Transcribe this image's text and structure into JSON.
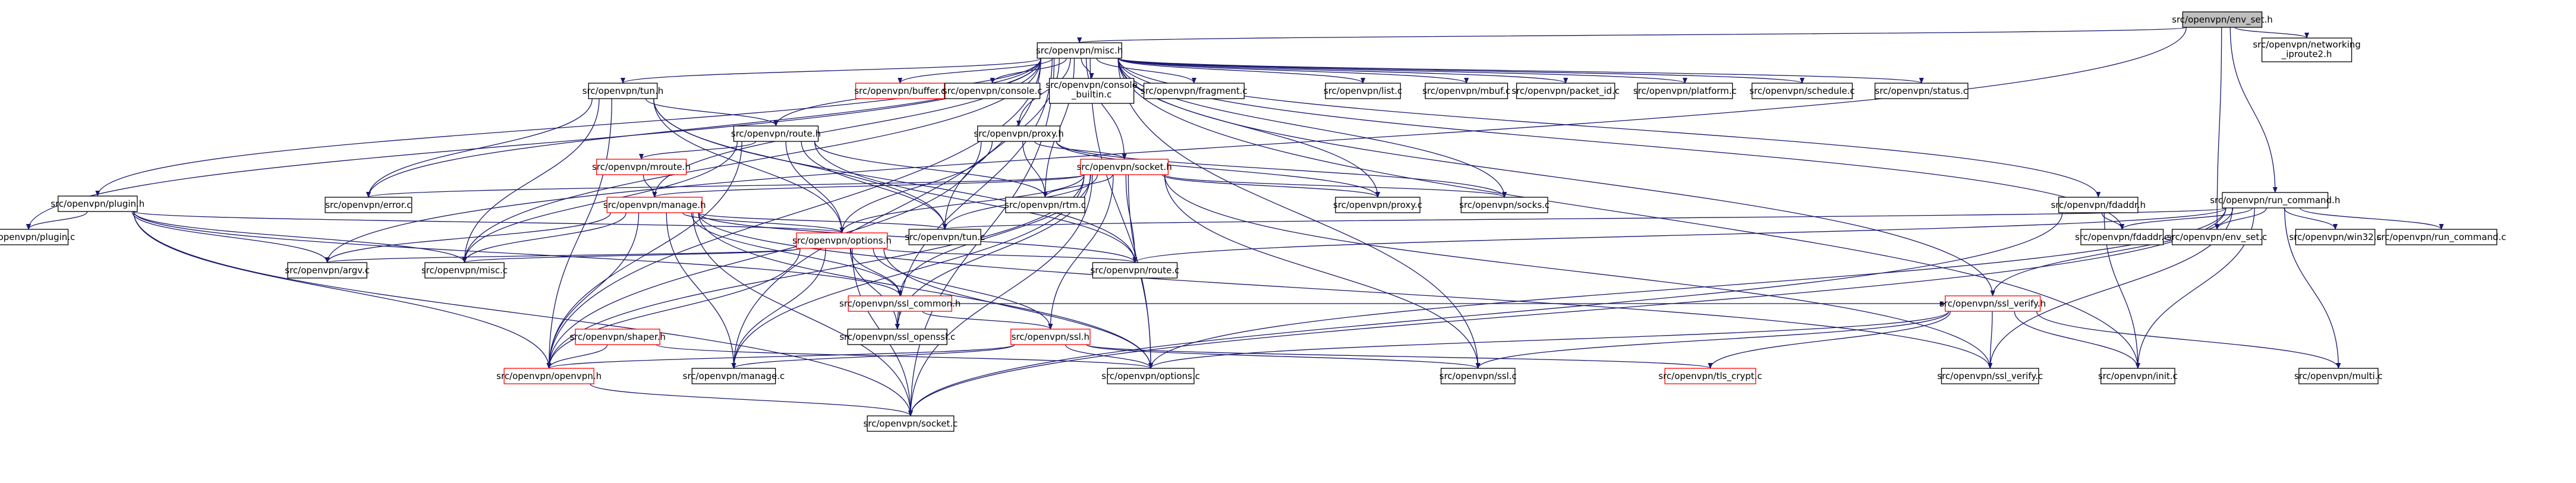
{
  "graph": {
    "nodes": [
      {
        "id": "env_set_h",
        "label": "src/openvpn/env_set.h",
        "kind": "root"
      },
      {
        "id": "iproute2_h",
        "label": "src/openvpn/networking\n_iproute2.h",
        "kind": "normal"
      },
      {
        "id": "misc_h",
        "label": "src/openvpn/misc.h",
        "kind": "normal"
      },
      {
        "id": "run_command_h",
        "label": "src/openvpn/run_command.h",
        "kind": "normal"
      },
      {
        "id": "tun_h",
        "label": "src/openvpn/tun.h",
        "kind": "normal"
      },
      {
        "id": "buffer_c",
        "label": "src/openvpn/buffer.c",
        "kind": "red"
      },
      {
        "id": "console_c",
        "label": "src/openvpn/console.c",
        "kind": "normal"
      },
      {
        "id": "console_builtin_c",
        "label": "src/openvpn/console\n_builtin.c",
        "kind": "normal"
      },
      {
        "id": "fragment_c",
        "label": "src/openvpn/fragment.c",
        "kind": "normal"
      },
      {
        "id": "list_c",
        "label": "src/openvpn/list.c",
        "kind": "normal"
      },
      {
        "id": "mbuf_c",
        "label": "src/openvpn/mbuf.c",
        "kind": "normal"
      },
      {
        "id": "packet_id_c",
        "label": "src/openvpn/packet_id.c",
        "kind": "normal"
      },
      {
        "id": "platform_c",
        "label": "src/openvpn/platform.c",
        "kind": "normal"
      },
      {
        "id": "schedule_c",
        "label": "src/openvpn/schedule.c",
        "kind": "normal"
      },
      {
        "id": "status_c",
        "label": "src/openvpn/status.c",
        "kind": "normal"
      },
      {
        "id": "route_h",
        "label": "src/openvpn/route.h",
        "kind": "normal"
      },
      {
        "id": "proxy_h",
        "label": "src/openvpn/proxy.h",
        "kind": "normal"
      },
      {
        "id": "mroute_h",
        "label": "src/openvpn/mroute.h",
        "kind": "red"
      },
      {
        "id": "socket_h",
        "label": "src/openvpn/socket.h",
        "kind": "red"
      },
      {
        "id": "plugin_h",
        "label": "src/openvpn/plugin.h",
        "kind": "normal"
      },
      {
        "id": "error_c",
        "label": "src/openvpn/error.c",
        "kind": "normal"
      },
      {
        "id": "manage_h",
        "label": "src/openvpn/manage.h",
        "kind": "red"
      },
      {
        "id": "rtm_c",
        "label": "src/openvpn/rtm.c",
        "kind": "normal"
      },
      {
        "id": "proxy_c",
        "label": "src/openvpn/proxy.c",
        "kind": "normal"
      },
      {
        "id": "socks_c",
        "label": "src/openvpn/socks.c",
        "kind": "normal"
      },
      {
        "id": "fdaddr_h",
        "label": "src/openvpn/fdaddr.h",
        "kind": "normal"
      },
      {
        "id": "plugin_c",
        "label": "src/openvpn/plugin.c",
        "kind": "normal"
      },
      {
        "id": "options_h",
        "label": "src/openvpn/options.h",
        "kind": "red"
      },
      {
        "id": "tun_c",
        "label": "src/openvpn/tun.c",
        "kind": "normal"
      },
      {
        "id": "fdaddr_c",
        "label": "src/openvpn/fdaddr.c",
        "kind": "normal"
      },
      {
        "id": "env_set_c",
        "label": "src/openvpn/env_set.c",
        "kind": "normal"
      },
      {
        "id": "win32_c",
        "label": "src/openvpn/win32.c",
        "kind": "normal"
      },
      {
        "id": "run_command_c",
        "label": "src/openvpn/run_command.c",
        "kind": "normal"
      },
      {
        "id": "argv_c",
        "label": "src/openvpn/argv.c",
        "kind": "normal"
      },
      {
        "id": "misc_c",
        "label": "src/openvpn/misc.c",
        "kind": "normal"
      },
      {
        "id": "route_c",
        "label": "src/openvpn/route.c",
        "kind": "normal"
      },
      {
        "id": "ssl_common_h",
        "label": "src/openvpn/ssl_common.h",
        "kind": "red"
      },
      {
        "id": "ssl_verify_h",
        "label": "src/openvpn/ssl_verify.h",
        "kind": "red"
      },
      {
        "id": "shaper_h",
        "label": "src/openvpn/shaper.h",
        "kind": "red"
      },
      {
        "id": "ssl_openssl_c",
        "label": "src/openvpn/ssl_openssl.c",
        "kind": "normal"
      },
      {
        "id": "ssl_h",
        "label": "src/openvpn/ssl.h",
        "kind": "red"
      },
      {
        "id": "openvpn_h",
        "label": "src/openvpn/openvpn.h",
        "kind": "red"
      },
      {
        "id": "manage_c",
        "label": "src/openvpn/manage.c",
        "kind": "normal"
      },
      {
        "id": "options_c",
        "label": "src/openvpn/options.c",
        "kind": "normal"
      },
      {
        "id": "ssl_c",
        "label": "src/openvpn/ssl.c",
        "kind": "normal"
      },
      {
        "id": "tls_crypt_c",
        "label": "src/openvpn/tls_crypt.c",
        "kind": "red"
      },
      {
        "id": "ssl_verify_c",
        "label": "src/openvpn/ssl_verify.c",
        "kind": "normal"
      },
      {
        "id": "init_c",
        "label": "src/openvpn/init.c",
        "kind": "normal"
      },
      {
        "id": "multi_c",
        "label": "src/openvpn/multi.c",
        "kind": "normal"
      },
      {
        "id": "socket_c",
        "label": "src/openvpn/socket.c",
        "kind": "normal"
      }
    ],
    "edges": [
      [
        "env_set_h",
        "iproute2_h"
      ],
      [
        "env_set_h",
        "misc_h"
      ],
      [
        "env_set_h",
        "run_command_h"
      ],
      [
        "env_set_h",
        "argv_c"
      ],
      [
        "env_set_h",
        "env_set_c"
      ],
      [
        "misc_h",
        "tun_h"
      ],
      [
        "misc_h",
        "buffer_c"
      ],
      [
        "misc_h",
        "console_c"
      ],
      [
        "misc_h",
        "console_builtin_c"
      ],
      [
        "misc_h",
        "fragment_c"
      ],
      [
        "misc_h",
        "list_c"
      ],
      [
        "misc_h",
        "mbuf_c"
      ],
      [
        "misc_h",
        "packet_id_c"
      ],
      [
        "misc_h",
        "platform_c"
      ],
      [
        "misc_h",
        "schedule_c"
      ],
      [
        "misc_h",
        "status_c"
      ],
      [
        "misc_h",
        "route_h"
      ],
      [
        "misc_h",
        "proxy_h"
      ],
      [
        "misc_h",
        "socket_h"
      ],
      [
        "misc_h",
        "plugin_h"
      ],
      [
        "misc_h",
        "error_c"
      ],
      [
        "misc_h",
        "manage_h"
      ],
      [
        "misc_h",
        "rtm_c"
      ],
      [
        "misc_h",
        "proxy_c"
      ],
      [
        "misc_h",
        "socks_c"
      ],
      [
        "misc_h",
        "fdaddr_h"
      ],
      [
        "misc_h",
        "fdaddr_c"
      ],
      [
        "misc_h",
        "plugin_c"
      ],
      [
        "misc_h",
        "tun_c"
      ],
      [
        "misc_h",
        "misc_c"
      ],
      [
        "misc_h",
        "ssl_verify_h"
      ],
      [
        "misc_h",
        "openvpn_h"
      ],
      [
        "misc_h",
        "options_c"
      ],
      [
        "misc_h",
        "ssl_c"
      ],
      [
        "misc_h",
        "init_c"
      ],
      [
        "misc_h",
        "socket_c"
      ],
      [
        "misc_h",
        "manage_c"
      ],
      [
        "misc_h",
        "ssl_openssl_c"
      ],
      [
        "tun_h",
        "route_h"
      ],
      [
        "tun_h",
        "error_c"
      ],
      [
        "tun_h",
        "options_h"
      ],
      [
        "tun_h",
        "misc_c"
      ],
      [
        "tun_h",
        "tun_c"
      ],
      [
        "tun_h",
        "openvpn_h"
      ],
      [
        "tun_h",
        "route_c"
      ],
      [
        "route_h",
        "mroute_h"
      ],
      [
        "route_h",
        "options_h"
      ],
      [
        "route_h",
        "tun_c"
      ],
      [
        "route_h",
        "route_c"
      ],
      [
        "route_h",
        "misc_c"
      ],
      [
        "route_h",
        "openvpn_h"
      ],
      [
        "route_h",
        "rtm_c"
      ],
      [
        "proxy_h",
        "socket_h"
      ],
      [
        "proxy_h",
        "proxy_c"
      ],
      [
        "proxy_h",
        "socks_c"
      ],
      [
        "proxy_h",
        "rtm_c"
      ],
      [
        "proxy_h",
        "options_h"
      ],
      [
        "proxy_h",
        "openvpn_h"
      ],
      [
        "mroute_h",
        "manage_h"
      ],
      [
        "socket_h",
        "manage_h"
      ],
      [
        "socket_h",
        "rtm_c"
      ],
      [
        "socket_h",
        "proxy_c"
      ],
      [
        "socket_h",
        "socks_c"
      ],
      [
        "socket_h",
        "tun_c"
      ],
      [
        "socket_h",
        "options_h"
      ],
      [
        "socket_h",
        "route_c"
      ],
      [
        "socket_h",
        "ssl_common_h"
      ],
      [
        "socket_h",
        "ssl_h"
      ],
      [
        "socket_h",
        "error_c"
      ],
      [
        "socket_h",
        "openvpn_h"
      ],
      [
        "socket_h",
        "ssl_c"
      ],
      [
        "socket_h",
        "options_c"
      ],
      [
        "socket_h",
        "socket_c"
      ],
      [
        "socket_h",
        "manage_c"
      ],
      [
        "socket_h",
        "ssl_openssl_c"
      ],
      [
        "socket_h",
        "ssl_verify_c"
      ],
      [
        "plugin_h",
        "plugin_c"
      ],
      [
        "plugin_h",
        "argv_c"
      ],
      [
        "plugin_h",
        "misc_c"
      ],
      [
        "plugin_h",
        "options_h"
      ],
      [
        "plugin_h",
        "ssl_common_h"
      ],
      [
        "plugin_h",
        "openvpn_h"
      ],
      [
        "plugin_h",
        "socket_c"
      ],
      [
        "manage_h",
        "options_h"
      ],
      [
        "manage_h",
        "tun_c"
      ],
      [
        "manage_h",
        "misc_c"
      ],
      [
        "manage_h",
        "argv_c"
      ],
      [
        "manage_h",
        "ssl_common_h"
      ],
      [
        "manage_h",
        "openvpn_h"
      ],
      [
        "manage_h",
        "manage_c"
      ],
      [
        "manage_h",
        "options_c"
      ],
      [
        "manage_h",
        "route_c"
      ],
      [
        "manage_h",
        "socket_c"
      ],
      [
        "manage_h",
        "ssl_verify_c"
      ],
      [
        "fdaddr_h",
        "fdaddr_c"
      ],
      [
        "fdaddr_h",
        "init_c"
      ],
      [
        "fdaddr_h",
        "socket_c"
      ],
      [
        "run_command_h",
        "fdaddr_c"
      ],
      [
        "run_command_h",
        "env_set_c"
      ],
      [
        "run_command_h",
        "win32_c"
      ],
      [
        "run_command_h",
        "run_command_c"
      ],
      [
        "run_command_h",
        "tun_c"
      ],
      [
        "run_command_h",
        "route_c"
      ],
      [
        "run_command_h",
        "ssl_verify_h"
      ],
      [
        "run_command_h",
        "options_c"
      ],
      [
        "run_command_h",
        "ssl_verify_c"
      ],
      [
        "run_command_h",
        "init_c"
      ],
      [
        "run_command_h",
        "multi_c"
      ],
      [
        "run_command_h",
        "socket_c"
      ],
      [
        "options_h",
        "argv_c"
      ],
      [
        "options_h",
        "misc_c"
      ],
      [
        "options_h",
        "route_c"
      ],
      [
        "options_h",
        "ssl_common_h"
      ],
      [
        "options_h",
        "ssl_h"
      ],
      [
        "options_h",
        "openvpn_h"
      ],
      [
        "options_h",
        "options_c"
      ],
      [
        "options_h",
        "socket_c"
      ],
      [
        "options_h",
        "manage_c"
      ],
      [
        "options_h",
        "ssl_openssl_c"
      ],
      [
        "ssl_common_h",
        "ssl_h"
      ],
      [
        "ssl_common_h",
        "ssl_verify_h"
      ],
      [
        "ssl_common_h",
        "ssl_openssl_c"
      ],
      [
        "ssl_verify_h",
        "ssl_verify_c"
      ],
      [
        "ssl_verify_h",
        "tls_crypt_c"
      ],
      [
        "ssl_verify_h",
        "options_c"
      ],
      [
        "ssl_verify_h",
        "ssl_c"
      ],
      [
        "ssl_verify_h",
        "init_c"
      ],
      [
        "ssl_verify_h",
        "multi_c"
      ],
      [
        "shaper_h",
        "openvpn_h"
      ],
      [
        "shaper_h",
        "options_c"
      ],
      [
        "ssl_h",
        "openvpn_h"
      ],
      [
        "ssl_h",
        "manage_c"
      ],
      [
        "ssl_h",
        "options_c"
      ],
      [
        "ssl_h",
        "ssl_c"
      ],
      [
        "ssl_h",
        "tls_crypt_c"
      ],
      [
        "openvpn_h",
        "socket_c"
      ]
    ]
  }
}
